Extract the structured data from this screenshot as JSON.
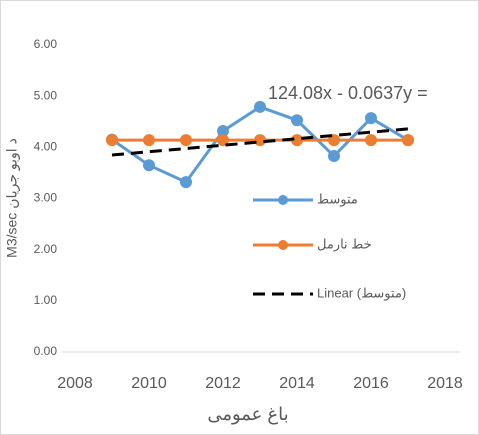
{
  "chart_data": {
    "type": "line",
    "annotation": "124.08x - 0.0637y =",
    "x_label": "باغ عمومی",
    "y_label": "M3/sec د اوبو جريان",
    "x": [
      2009,
      2010,
      2011,
      2012,
      2013,
      2014,
      2015,
      2016,
      2017
    ],
    "series": [
      {
        "name": "متوسط",
        "color": "#5b9bd5",
        "values": [
          4.15,
          3.65,
          3.32,
          4.32,
          4.79,
          4.53,
          3.83,
          4.57,
          4.14
        ]
      },
      {
        "name": "خط نارمل",
        "color": "#ed7d31",
        "values": [
          4.14,
          4.14,
          4.14,
          4.14,
          4.14,
          4.14,
          4.14,
          4.14,
          4.14
        ]
      }
    ],
    "trendline": {
      "name": "Linear (متوسط)",
      "color": "#000000",
      "x": [
        2009,
        2017
      ],
      "values": [
        3.85,
        4.36
      ]
    },
    "xlim": [
      2008,
      2018
    ],
    "xticks": [
      2008,
      2010,
      2012,
      2014,
      2016,
      2018
    ],
    "ylim": [
      0,
      6
    ],
    "yticks": [
      {
        "value": 0,
        "label": "0.00"
      },
      {
        "value": 1,
        "label": "1.00"
      },
      {
        "value": 2,
        "label": "2.00"
      },
      {
        "value": 3,
        "label": "3.00"
      },
      {
        "value": 4,
        "label": "4.00"
      },
      {
        "value": 5,
        "label": "5.00"
      },
      {
        "value": 6,
        "label": "6.00"
      }
    ],
    "legend": "right"
  }
}
